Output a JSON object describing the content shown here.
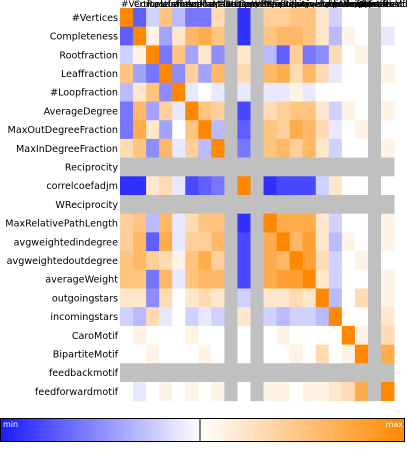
{
  "chart_data": {
    "type": "heatmap",
    "rows": [
      "#Vertices",
      "Completeness",
      "Rootfraction",
      "Leaffraction",
      "#Loopfraction",
      "AverageDegree",
      "MaxOutDegreeFraction",
      "MaxInDegreeFraction",
      "Reciprocity",
      "correlcoefadjm",
      "WReciprocity",
      "MaxRelativePathLength",
      "avgweightedindegree",
      "avgweightedoutdegree",
      "averageWeight",
      "outgoingstars",
      "incomingstars",
      "CaroMotif",
      "BipartiteMotif",
      "feedbackmotif",
      "feedforwardmotif"
    ],
    "columns": [
      "#Vertices",
      "Completeness",
      "Rootfraction",
      "Leaffraction",
      "#Loopfraction",
      "AverageDegree",
      "MaxOutDegreeFraction",
      "MaxInDegreeFraction",
      "Reciprocity",
      "correlcoefadjm",
      "WReciprocity",
      "MaxRelativePathLength",
      "avgweightedindegree",
      "avgweightedoutdegree",
      "averageWeight",
      "outgoingstars",
      "incomingstars",
      "CaroMotif",
      "BipartiteMotif",
      "feedbackmotif",
      "feedforwardmotif"
    ],
    "missing_rows": [
      8,
      10,
      19
    ],
    "missing_cols": [
      8,
      10,
      19
    ],
    "values": [
      [
        1.0,
        -0.7,
        -0.2,
        0.5,
        -0.3,
        -0.6,
        -0.6,
        0.3,
        null,
        -0.9,
        null,
        0.4,
        0.4,
        0.5,
        0.5,
        0.2,
        -0.2,
        0.0,
        0.0,
        null,
        0.0
      ],
      [
        -0.7,
        1.0,
        0.1,
        -0.4,
        0.2,
        0.6,
        0.7,
        0.5,
        null,
        -0.9,
        null,
        0.5,
        0.6,
        0.6,
        0.5,
        0.2,
        -0.3,
        0.1,
        0.0,
        null,
        -0.1
      ],
      [
        -0.2,
        0.1,
        1.0,
        -0.6,
        0.5,
        -0.4,
        0.2,
        -0.5,
        null,
        0.2,
        null,
        -0.3,
        -0.7,
        0.4,
        -0.6,
        -0.5,
        0.3,
        0.0,
        0.1,
        null,
        0.0
      ],
      [
        0.5,
        -0.4,
        -0.6,
        1.0,
        -0.5,
        0.4,
        -0.4,
        0.6,
        null,
        0.3,
        null,
        0.6,
        0.7,
        0.3,
        0.6,
        0.3,
        -0.1,
        0.0,
        0.0,
        null,
        0.1
      ],
      [
        -0.3,
        0.2,
        0.5,
        -0.5,
        1.0,
        -0.1,
        0.0,
        -0.1,
        null,
        -0.1,
        null,
        -0.1,
        -0.1,
        0.1,
        -0.1,
        0.0,
        0.0,
        0.0,
        0.0,
        null,
        0.0
      ],
      [
        -0.6,
        0.6,
        -0.4,
        0.4,
        -0.1,
        1.0,
        0.5,
        0.4,
        null,
        -0.8,
        null,
        0.3,
        0.4,
        0.5,
        0.5,
        0.2,
        -0.2,
        0.1,
        0.0,
        null,
        0.1
      ],
      [
        -0.6,
        0.7,
        0.2,
        -0.4,
        0.0,
        0.5,
        1.0,
        -0.3,
        null,
        -0.7,
        null,
        0.5,
        0.4,
        0.7,
        0.6,
        0.3,
        -0.1,
        0.0,
        0.1,
        null,
        0.0
      ],
      [
        0.3,
        0.5,
        -0.5,
        0.6,
        -0.1,
        0.4,
        -0.3,
        1.0,
        null,
        -0.6,
        null,
        0.5,
        0.6,
        0.4,
        0.6,
        0.2,
        -0.2,
        0.0,
        0.0,
        null,
        0.1
      ],
      [
        null,
        null,
        null,
        null,
        null,
        null,
        null,
        null,
        null,
        null,
        null,
        null,
        null,
        null,
        null,
        null,
        null,
        null,
        null,
        null,
        null
      ],
      [
        -0.9,
        -0.9,
        0.2,
        0.3,
        -0.1,
        -0.8,
        -0.7,
        -0.6,
        null,
        1.0,
        null,
        -0.9,
        -0.8,
        -0.8,
        -0.8,
        -0.2,
        0.2,
        0.0,
        0.0,
        null,
        0.0
      ],
      [
        null,
        null,
        null,
        null,
        null,
        null,
        null,
        null,
        null,
        null,
        null,
        null,
        null,
        null,
        null,
        null,
        null,
        null,
        null,
        null,
        null
      ],
      [
        0.4,
        0.5,
        -0.3,
        0.6,
        -0.1,
        0.3,
        0.5,
        0.5,
        null,
        -0.9,
        null,
        1.0,
        0.7,
        0.7,
        0.7,
        0.2,
        -0.2,
        0.0,
        0.0,
        null,
        0.1
      ],
      [
        0.4,
        0.6,
        -0.7,
        0.7,
        -0.1,
        0.4,
        0.4,
        0.6,
        null,
        -0.8,
        null,
        0.7,
        1.0,
        0.6,
        0.8,
        0.2,
        -0.3,
        0.1,
        0.0,
        null,
        0.1
      ],
      [
        0.5,
        0.6,
        0.4,
        0.3,
        0.1,
        0.5,
        0.7,
        0.4,
        null,
        -0.8,
        null,
        0.7,
        0.6,
        1.0,
        0.8,
        0.3,
        -0.2,
        0.0,
        0.1,
        null,
        0.0
      ],
      [
        0.5,
        0.5,
        -0.6,
        0.6,
        -0.1,
        0.5,
        0.6,
        0.6,
        null,
        -0.8,
        null,
        0.7,
        0.8,
        0.8,
        1.0,
        0.2,
        -0.2,
        0.0,
        0.0,
        null,
        0.1
      ],
      [
        0.2,
        0.2,
        -0.5,
        0.3,
        0.0,
        0.2,
        0.3,
        0.2,
        null,
        -0.2,
        null,
        0.2,
        0.2,
        0.3,
        0.2,
        1.0,
        -0.3,
        0.0,
        0.3,
        null,
        0.1
      ],
      [
        -0.2,
        -0.3,
        0.3,
        -0.1,
        0.0,
        -0.2,
        -0.1,
        -0.2,
        null,
        0.2,
        null,
        -0.2,
        -0.3,
        -0.2,
        -0.2,
        -0.3,
        1.0,
        0.0,
        0.0,
        null,
        0.2
      ],
      [
        0.0,
        0.1,
        0.0,
        0.0,
        0.0,
        0.1,
        0.0,
        0.0,
        null,
        0.0,
        null,
        0.0,
        0.1,
        0.0,
        0.0,
        0.0,
        0.0,
        1.0,
        0.1,
        null,
        0.3
      ],
      [
        0.0,
        0.0,
        0.1,
        0.0,
        0.0,
        0.0,
        0.1,
        0.0,
        null,
        0.0,
        null,
        0.0,
        0.0,
        0.1,
        0.0,
        0.3,
        0.0,
        0.1,
        1.0,
        null,
        0.7
      ],
      [
        null,
        null,
        null,
        null,
        null,
        null,
        null,
        null,
        null,
        null,
        null,
        null,
        null,
        null,
        null,
        null,
        null,
        null,
        null,
        null,
        null
      ],
      [
        0.0,
        -0.1,
        0.0,
        0.1,
        0.0,
        0.1,
        0.0,
        0.1,
        null,
        0.0,
        null,
        0.1,
        0.1,
        0.0,
        0.1,
        0.1,
        0.2,
        0.3,
        0.7,
        null,
        1.0
      ]
    ],
    "range": [
      -1,
      1
    ],
    "colors": {
      "min": "#1a1aff",
      "mid": "#ffffff",
      "max": "#ff8800",
      "missing": "#c0c0c0"
    },
    "legend": {
      "min_label": "min",
      "max_label": "max",
      "position": "bottom"
    }
  }
}
